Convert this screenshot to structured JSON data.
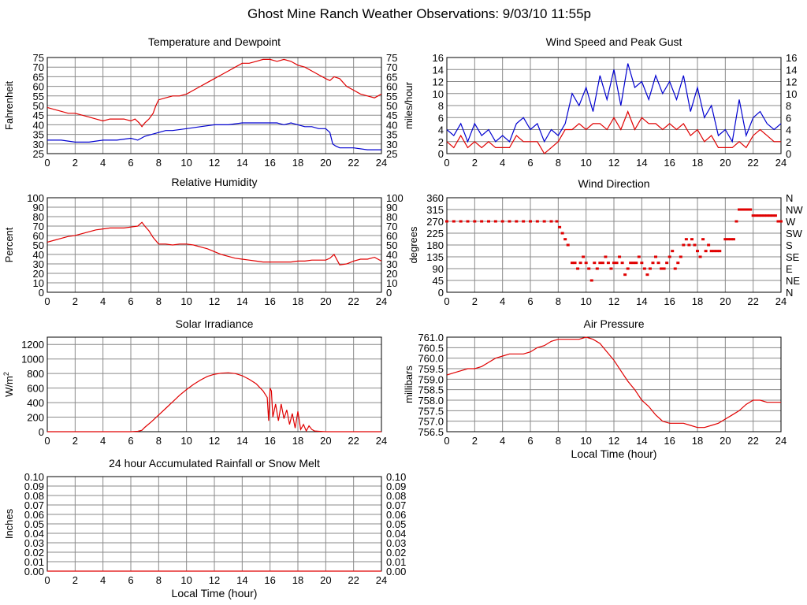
{
  "title": "Ghost Mine Ranch Weather Observations: 9/03/10 11:55p",
  "x_axis_label": "Local Time (hour)",
  "chart_data": [
    {
      "id": "temp",
      "type": "line",
      "title": "Temperature and Dewpoint",
      "ylabel": "Fahrenheit",
      "xlim": [
        0,
        24
      ],
      "ylim": [
        25,
        75
      ],
      "xticks": [
        0,
        2,
        4,
        6,
        8,
        10,
        12,
        14,
        16,
        18,
        20,
        22,
        24
      ],
      "yticks": [
        25,
        30,
        35,
        40,
        45,
        50,
        55,
        60,
        65,
        70,
        75
      ],
      "right_axis": true,
      "grid": true,
      "series": [
        {
          "color": "#e00000",
          "x": [
            0,
            0.5,
            1,
            1.5,
            2,
            2.5,
            3,
            3.5,
            4,
            4.5,
            5,
            5.5,
            6,
            6.3,
            6.6,
            6.8,
            7,
            7.3,
            7.6,
            7.8,
            8,
            8.5,
            9,
            9.5,
            10,
            10.5,
            11,
            11.5,
            12,
            12.5,
            13,
            13.5,
            14,
            14.5,
            15,
            15.5,
            16,
            16.5,
            17,
            17.5,
            18,
            18.5,
            19,
            19.5,
            20,
            20.3,
            20.6,
            21,
            21.5,
            22,
            22.5,
            23,
            23.5,
            24
          ],
          "y": [
            49,
            48,
            47,
            46,
            46,
            45,
            44,
            43,
            42,
            43,
            43,
            43,
            42,
            43,
            41,
            39,
            41,
            43,
            46,
            50,
            53,
            54,
            55,
            55,
            56,
            58,
            60,
            62,
            64,
            66,
            68,
            70,
            72,
            72,
            73,
            74,
            74,
            73,
            74,
            73,
            71,
            70,
            68,
            66,
            64,
            63,
            65,
            64,
            60,
            58,
            56,
            55,
            54,
            56
          ]
        },
        {
          "color": "#0000d0",
          "x": [
            0,
            1,
            2,
            3,
            4,
            5,
            6,
            6.5,
            7,
            7.5,
            8,
            8.5,
            9,
            10,
            11,
            12,
            13,
            14,
            15,
            16,
            16.5,
            17,
            17.5,
            18,
            18.5,
            19,
            19.5,
            20,
            20.3,
            20.5,
            20.7,
            21,
            22,
            23,
            24
          ],
          "y": [
            32,
            32,
            31,
            31,
            32,
            32,
            33,
            32,
            34,
            35,
            36,
            37,
            37,
            38,
            39,
            40,
            40,
            41,
            41,
            41,
            41,
            40,
            41,
            40,
            39,
            39,
            38,
            38,
            36,
            30,
            29,
            28,
            28,
            27,
            27
          ]
        }
      ]
    },
    {
      "id": "wind",
      "type": "line",
      "title": "Wind Speed and Peak Gust",
      "ylabel": "miles/hour",
      "xlim": [
        0,
        24
      ],
      "ylim": [
        0,
        16
      ],
      "xticks": [
        0,
        2,
        4,
        6,
        8,
        10,
        12,
        14,
        16,
        18,
        20,
        22,
        24
      ],
      "yticks": [
        0,
        2,
        4,
        6,
        8,
        10,
        12,
        14,
        16
      ],
      "right_axis": true,
      "grid": true,
      "series": [
        {
          "color": "#0000d0",
          "x": [
            0,
            0.5,
            1,
            1.5,
            2,
            2.5,
            3,
            3.5,
            4,
            4.5,
            5,
            5.5,
            6,
            6.5,
            7,
            7.5,
            8,
            8.5,
            9,
            9.5,
            10,
            10.5,
            11,
            11.5,
            12,
            12.5,
            13,
            13.5,
            14,
            14.5,
            15,
            15.5,
            16,
            16.5,
            17,
            17.5,
            18,
            18.5,
            19,
            19.5,
            20,
            20.5,
            21,
            21.5,
            22,
            22.5,
            23,
            23.5,
            24
          ],
          "y": [
            4,
            3,
            5,
            2,
            5,
            3,
            4,
            2,
            3,
            2,
            5,
            6,
            4,
            5,
            2,
            4,
            3,
            5,
            10,
            8,
            11,
            7,
            13,
            9,
            14,
            8,
            15,
            11,
            12,
            9,
            13,
            10,
            12,
            9,
            13,
            7,
            11,
            6,
            8,
            3,
            4,
            2,
            9,
            3,
            6,
            7,
            5,
            4,
            5
          ]
        },
        {
          "color": "#e00000",
          "x": [
            0,
            0.5,
            1,
            1.5,
            2,
            2.5,
            3,
            3.5,
            4,
            4.5,
            5,
            5.5,
            6,
            6.5,
            7,
            7.5,
            8,
            8.5,
            9,
            9.5,
            10,
            10.5,
            11,
            11.5,
            12,
            12.5,
            13,
            13.5,
            14,
            14.5,
            15,
            15.5,
            16,
            16.5,
            17,
            17.5,
            18,
            18.5,
            19,
            19.5,
            20,
            20.5,
            21,
            21.5,
            22,
            22.5,
            23,
            23.5,
            24
          ],
          "y": [
            2,
            1,
            3,
            1,
            2,
            1,
            2,
            1,
            1,
            1,
            3,
            2,
            2,
            2,
            0,
            1,
            2,
            4,
            4,
            5,
            4,
            5,
            5,
            4,
            6,
            4,
            7,
            4,
            6,
            5,
            5,
            4,
            5,
            4,
            5,
            3,
            4,
            2,
            3,
            1,
            1,
            1,
            2,
            1,
            3,
            4,
            3,
            2,
            2
          ]
        }
      ]
    },
    {
      "id": "rh",
      "type": "line",
      "title": "Relative Humidity",
      "ylabel": "Percent",
      "xlim": [
        0,
        24
      ],
      "ylim": [
        0,
        100
      ],
      "xticks": [
        0,
        2,
        4,
        6,
        8,
        10,
        12,
        14,
        16,
        18,
        20,
        22,
        24
      ],
      "yticks": [
        0,
        10,
        20,
        30,
        40,
        50,
        60,
        70,
        80,
        90,
        100
      ],
      "right_axis": true,
      "grid": true,
      "series": [
        {
          "color": "#e00000",
          "x": [
            0,
            0.5,
            1,
            1.5,
            2,
            2.5,
            3,
            3.5,
            4,
            4.5,
            5,
            5.5,
            6,
            6.5,
            6.8,
            7,
            7.3,
            7.6,
            8,
            8.5,
            9,
            9.5,
            10,
            10.5,
            11,
            11.5,
            12,
            12.5,
            13,
            13.5,
            14,
            14.5,
            15,
            15.5,
            16,
            16.5,
            17,
            17.5,
            18,
            18.5,
            19,
            19.5,
            20,
            20.3,
            20.6,
            21,
            21.5,
            22,
            22.5,
            23,
            23.5,
            24
          ],
          "y": [
            53,
            55,
            57,
            59,
            60,
            62,
            64,
            66,
            67,
            68,
            68,
            68,
            69,
            70,
            74,
            70,
            65,
            58,
            51,
            51,
            50,
            51,
            51,
            50,
            48,
            46,
            43,
            40,
            38,
            36,
            35,
            34,
            33,
            32,
            32,
            32,
            32,
            32,
            33,
            33,
            34,
            34,
            34,
            36,
            40,
            29,
            30,
            33,
            35,
            35,
            37,
            33
          ]
        }
      ]
    },
    {
      "id": "wdir",
      "type": "scatter",
      "title": "Wind Direction",
      "ylabel": "degrees",
      "xlim": [
        0,
        24
      ],
      "ylim": [
        0,
        360
      ],
      "xticks": [
        0,
        2,
        4,
        6,
        8,
        10,
        12,
        14,
        16,
        18,
        20,
        22,
        24
      ],
      "yticks": [
        0,
        45,
        90,
        135,
        180,
        225,
        270,
        315,
        360
      ],
      "right_labels": [
        "N",
        "NE",
        "E",
        "SE",
        "S",
        "SW",
        "W",
        "NW",
        "N"
      ],
      "grid": true,
      "series": [
        {
          "color": "#e00000",
          "x": [
            0,
            0.5,
            1,
            1.5,
            2,
            2.5,
            3,
            3.5,
            4,
            4.5,
            5,
            5.5,
            6,
            6.5,
            7,
            7.5,
            7.9,
            8.1,
            8.3,
            8.5,
            8.7,
            9,
            9.2,
            9.4,
            9.6,
            9.8,
            10,
            10.2,
            10.4,
            10.6,
            10.8,
            11,
            11.2,
            11.4,
            11.6,
            11.8,
            12,
            12.2,
            12.4,
            12.6,
            12.8,
            13,
            13.2,
            13.4,
            13.6,
            13.8,
            14,
            14.2,
            14.4,
            14.6,
            14.8,
            15,
            15.2,
            15.4,
            15.6,
            15.8,
            16,
            16.2,
            16.4,
            16.6,
            16.8,
            17,
            17.2,
            17.4,
            17.6,
            17.8,
            18,
            18.2,
            18.4,
            18.6,
            18.8,
            19,
            19.2,
            19.4,
            19.6,
            20,
            20.2,
            20.4,
            20.6,
            20.8,
            21,
            21.2,
            21.4,
            21.6,
            21.8,
            22,
            22.2,
            22.4,
            22.6,
            22.8,
            23,
            23.2,
            23.4,
            23.6,
            23.8,
            24
          ],
          "y": [
            270,
            270,
            270,
            270,
            270,
            270,
            270,
            270,
            270,
            270,
            270,
            270,
            270,
            270,
            270,
            270,
            270,
            248,
            225,
            202,
            180,
            112,
            112,
            90,
            112,
            135,
            112,
            90,
            45,
            112,
            90,
            112,
            112,
            135,
            112,
            90,
            112,
            112,
            135,
            112,
            67,
            90,
            112,
            112,
            112,
            135,
            112,
            90,
            67,
            90,
            112,
            135,
            112,
            90,
            90,
            112,
            135,
            157,
            90,
            112,
            135,
            180,
            202,
            180,
            202,
            180,
            157,
            135,
            202,
            157,
            180,
            157,
            157,
            157,
            157,
            202,
            202,
            202,
            202,
            270,
            315,
            315,
            315,
            315,
            315,
            292,
            292,
            292,
            292,
            292,
            292,
            292,
            292,
            292,
            270,
            270
          ]
        }
      ]
    },
    {
      "id": "solar",
      "type": "line",
      "title": "Solar Irradiance",
      "ylabel": "W/m2",
      "xlim": [
        0,
        24
      ],
      "ylim": [
        0,
        1300
      ],
      "xticks": [
        0,
        2,
        4,
        6,
        8,
        10,
        12,
        14,
        16,
        18,
        20,
        22,
        24
      ],
      "yticks": [
        0,
        200,
        400,
        600,
        800,
        1000,
        1200
      ],
      "right_axis": false,
      "grid": true,
      "series": [
        {
          "color": "#e00000",
          "x": [
            0,
            6,
            6.5,
            6.8,
            7,
            7.5,
            8,
            8.5,
            9,
            9.5,
            10,
            10.5,
            11,
            11.5,
            12,
            12.5,
            13,
            13.5,
            14,
            14.5,
            15,
            15.5,
            15.8,
            15.9,
            16,
            16.1,
            16.2,
            16.4,
            16.6,
            16.8,
            17,
            17.2,
            17.4,
            17.6,
            17.8,
            18,
            18.2,
            18.4,
            18.6,
            18.8,
            19,
            19.2,
            19.5,
            20,
            24
          ],
          "y": [
            0,
            0,
            5,
            20,
            60,
            140,
            230,
            320,
            410,
            500,
            580,
            650,
            710,
            760,
            790,
            805,
            810,
            800,
            770,
            720,
            660,
            560,
            470,
            150,
            600,
            560,
            200,
            380,
            150,
            380,
            180,
            300,
            100,
            250,
            50,
            280,
            30,
            100,
            10,
            80,
            30,
            10,
            5,
            0,
            0
          ]
        }
      ]
    },
    {
      "id": "pressure",
      "type": "line",
      "title": "Air Pressure",
      "ylabel": "millibars",
      "xlim": [
        0,
        24
      ],
      "ylim": [
        756.5,
        761.0
      ],
      "xticks": [
        0,
        2,
        4,
        6,
        8,
        10,
        12,
        14,
        16,
        18,
        20,
        22,
        24
      ],
      "yticks": [
        756.5,
        757.0,
        757.5,
        758.0,
        758.5,
        759.0,
        759.5,
        760.0,
        760.5,
        761.0
      ],
      "right_axis": false,
      "grid": true,
      "series": [
        {
          "color": "#e00000",
          "x": [
            0,
            0.5,
            1,
            1.5,
            2,
            2.5,
            3,
            3.5,
            4,
            4.5,
            5,
            5.5,
            6,
            6.5,
            7,
            7.5,
            8,
            8.5,
            9,
            9.5,
            10,
            10.5,
            11,
            11.5,
            12,
            12.5,
            13,
            13.5,
            14,
            14.5,
            15,
            15.5,
            16,
            16.5,
            17,
            17.5,
            18,
            18.5,
            19,
            19.5,
            20,
            20.5,
            21,
            21.5,
            22,
            22.5,
            23,
            23.5,
            24
          ],
          "y": [
            759.2,
            759.3,
            759.4,
            759.5,
            759.5,
            759.6,
            759.8,
            760.0,
            760.1,
            760.2,
            760.2,
            760.2,
            760.3,
            760.5,
            760.6,
            760.8,
            760.9,
            760.9,
            760.9,
            760.9,
            761.0,
            760.9,
            760.7,
            760.3,
            759.9,
            759.4,
            758.9,
            758.5,
            758.0,
            757.7,
            757.3,
            757.0,
            756.9,
            756.9,
            756.9,
            756.8,
            756.7,
            756.7,
            756.8,
            756.9,
            757.1,
            757.3,
            757.5,
            757.8,
            758.0,
            758.0,
            757.9,
            757.9,
            757.9
          ]
        }
      ]
    },
    {
      "id": "rain",
      "type": "line",
      "title": "24 hour Accumulated Rainfall or Snow Melt",
      "ylabel": "Inches",
      "xlim": [
        0,
        24
      ],
      "ylim": [
        0,
        0.1
      ],
      "xticks": [
        0,
        2,
        4,
        6,
        8,
        10,
        12,
        14,
        16,
        18,
        20,
        22,
        24
      ],
      "yticks": [
        0.0,
        0.01,
        0.02,
        0.03,
        0.04,
        0.05,
        0.06,
        0.07,
        0.08,
        0.09,
        0.1
      ],
      "ytick_decimals": 2,
      "right_axis": true,
      "grid": true,
      "series": [
        {
          "color": "#e00000",
          "x": [
            0,
            24
          ],
          "y": [
            0,
            0
          ]
        }
      ]
    }
  ]
}
